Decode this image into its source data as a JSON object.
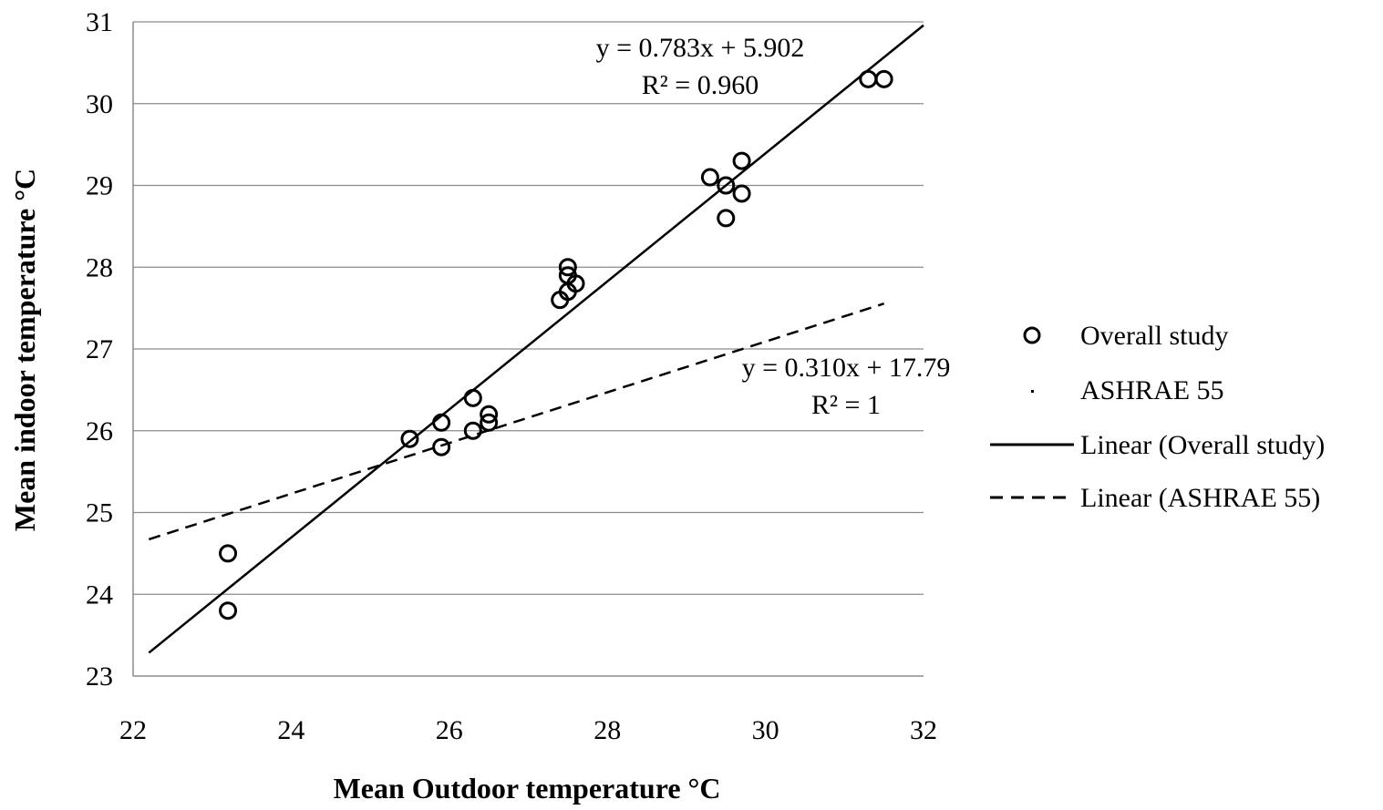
{
  "chart_data": {
    "type": "scatter",
    "xlabel": "Mean Outdoor temperature °C",
    "ylabel": "Mean indoor temperature °C",
    "xlim": [
      22,
      32
    ],
    "ylim": [
      23,
      31
    ],
    "xticks": [
      "22",
      "24",
      "26",
      "28",
      "30",
      "32"
    ],
    "yticks": [
      "23",
      "24",
      "25",
      "26",
      "27",
      "28",
      "29",
      "30",
      "31"
    ],
    "grid": "horizontal",
    "legend_position": "right",
    "series": [
      {
        "name": "Overall study",
        "kind": "scatter",
        "marker": "open-circle",
        "points": [
          [
            23.2,
            24.5
          ],
          [
            23.2,
            23.8
          ],
          [
            25.5,
            25.9
          ],
          [
            25.9,
            26.1
          ],
          [
            25.9,
            25.8
          ],
          [
            26.3,
            26.4
          ],
          [
            26.3,
            26.0
          ],
          [
            26.5,
            26.2
          ],
          [
            26.5,
            26.1
          ],
          [
            27.4,
            27.6
          ],
          [
            27.5,
            27.7
          ],
          [
            27.6,
            27.8
          ],
          [
            27.5,
            27.9
          ],
          [
            27.5,
            28.0
          ],
          [
            29.3,
            29.1
          ],
          [
            29.5,
            29.0
          ],
          [
            29.7,
            29.3
          ],
          [
            29.7,
            28.9
          ],
          [
            29.5,
            28.6
          ],
          [
            31.3,
            30.3
          ],
          [
            31.5,
            30.3
          ]
        ]
      },
      {
        "name": "ASHRAE 55",
        "kind": "scatter",
        "marker": "dot",
        "points": []
      },
      {
        "name": "Linear (Overall study)",
        "kind": "trendline",
        "style": "solid",
        "slope": 0.783,
        "intercept": 5.902,
        "x_range": [
          22.2,
          32
        ]
      },
      {
        "name": "Linear (ASHRAE 55)",
        "kind": "trendline",
        "style": "dashed",
        "slope": 0.31,
        "intercept": 17.79,
        "x_range": [
          22.2,
          31.5
        ]
      }
    ],
    "annotations": [
      {
        "line1": "y = 0.783x + 5.902",
        "line2": "R² = 0.960"
      },
      {
        "line1": "y = 0.310x + 17.79",
        "line2": "R² = 1"
      }
    ]
  }
}
